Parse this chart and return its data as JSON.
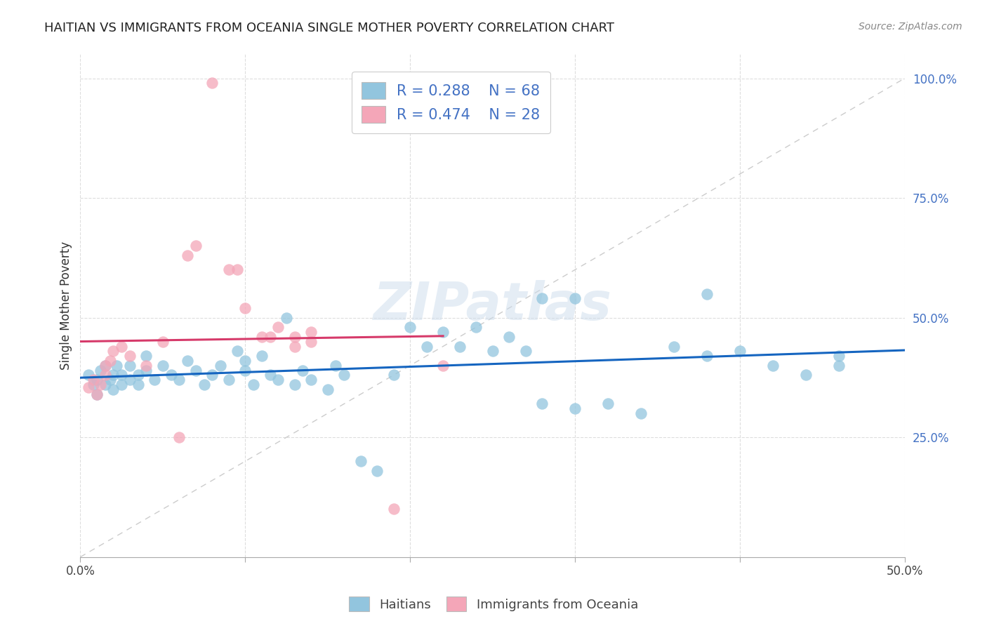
{
  "title": "HAITIAN VS IMMIGRANTS FROM OCEANIA SINGLE MOTHER POVERTY CORRELATION CHART",
  "source": "Source: ZipAtlas.com",
  "ylabel": "Single Mother Poverty",
  "legend_label1": "Haitians",
  "legend_label2": "Immigrants from Oceania",
  "r1": "0.288",
  "n1": "68",
  "r2": "0.474",
  "n2": "28",
  "color_blue": "#92c5de",
  "color_pink": "#f4a6b8",
  "trendline_blue": "#1565c0",
  "trendline_pink": "#d63a6a",
  "watermark_color": "#ccdcec",
  "xlim": [
    0.0,
    0.5
  ],
  "ylim": [
    0.0,
    1.05
  ],
  "xticks": [
    0.0,
    0.5
  ],
  "xtick_labels": [
    "0.0%",
    "50.0%"
  ],
  "yticks": [
    0.25,
    0.5,
    0.75,
    1.0
  ],
  "ytick_labels": [
    "25.0%",
    "50.0%",
    "75.0%",
    "100.0%"
  ],
  "blue_x": [
    0.005,
    0.008,
    0.01,
    0.01,
    0.012,
    0.015,
    0.015,
    0.018,
    0.02,
    0.02,
    0.022,
    0.025,
    0.025,
    0.03,
    0.03,
    0.035,
    0.035,
    0.04,
    0.04,
    0.045,
    0.05,
    0.055,
    0.06,
    0.065,
    0.07,
    0.075,
    0.08,
    0.085,
    0.09,
    0.095,
    0.1,
    0.1,
    0.105,
    0.11,
    0.115,
    0.12,
    0.125,
    0.13,
    0.135,
    0.14,
    0.15,
    0.155,
    0.16,
    0.17,
    0.18,
    0.19,
    0.2,
    0.21,
    0.22,
    0.23,
    0.24,
    0.25,
    0.26,
    0.27,
    0.28,
    0.3,
    0.32,
    0.34,
    0.36,
    0.38,
    0.4,
    0.42,
    0.44,
    0.46,
    0.28,
    0.3,
    0.38,
    0.46
  ],
  "blue_y": [
    0.38,
    0.36,
    0.37,
    0.34,
    0.39,
    0.36,
    0.4,
    0.37,
    0.35,
    0.38,
    0.4,
    0.36,
    0.38,
    0.37,
    0.4,
    0.36,
    0.38,
    0.39,
    0.42,
    0.37,
    0.4,
    0.38,
    0.37,
    0.41,
    0.39,
    0.36,
    0.38,
    0.4,
    0.37,
    0.43,
    0.39,
    0.41,
    0.36,
    0.42,
    0.38,
    0.37,
    0.5,
    0.36,
    0.39,
    0.37,
    0.35,
    0.4,
    0.38,
    0.2,
    0.18,
    0.38,
    0.48,
    0.44,
    0.47,
    0.44,
    0.48,
    0.43,
    0.46,
    0.43,
    0.32,
    0.31,
    0.32,
    0.3,
    0.44,
    0.42,
    0.43,
    0.4,
    0.38,
    0.4,
    0.54,
    0.54,
    0.55,
    0.42
  ],
  "pink_x": [
    0.005,
    0.008,
    0.01,
    0.012,
    0.015,
    0.015,
    0.018,
    0.02,
    0.025,
    0.03,
    0.04,
    0.05,
    0.06,
    0.065,
    0.07,
    0.08,
    0.09,
    0.095,
    0.1,
    0.11,
    0.115,
    0.12,
    0.13,
    0.13,
    0.14,
    0.14,
    0.19,
    0.22
  ],
  "pink_y": [
    0.355,
    0.37,
    0.34,
    0.36,
    0.38,
    0.4,
    0.41,
    0.43,
    0.44,
    0.42,
    0.4,
    0.45,
    0.25,
    0.63,
    0.65,
    0.99,
    0.6,
    0.6,
    0.52,
    0.46,
    0.46,
    0.48,
    0.46,
    0.44,
    0.47,
    0.45,
    0.1,
    0.4
  ]
}
